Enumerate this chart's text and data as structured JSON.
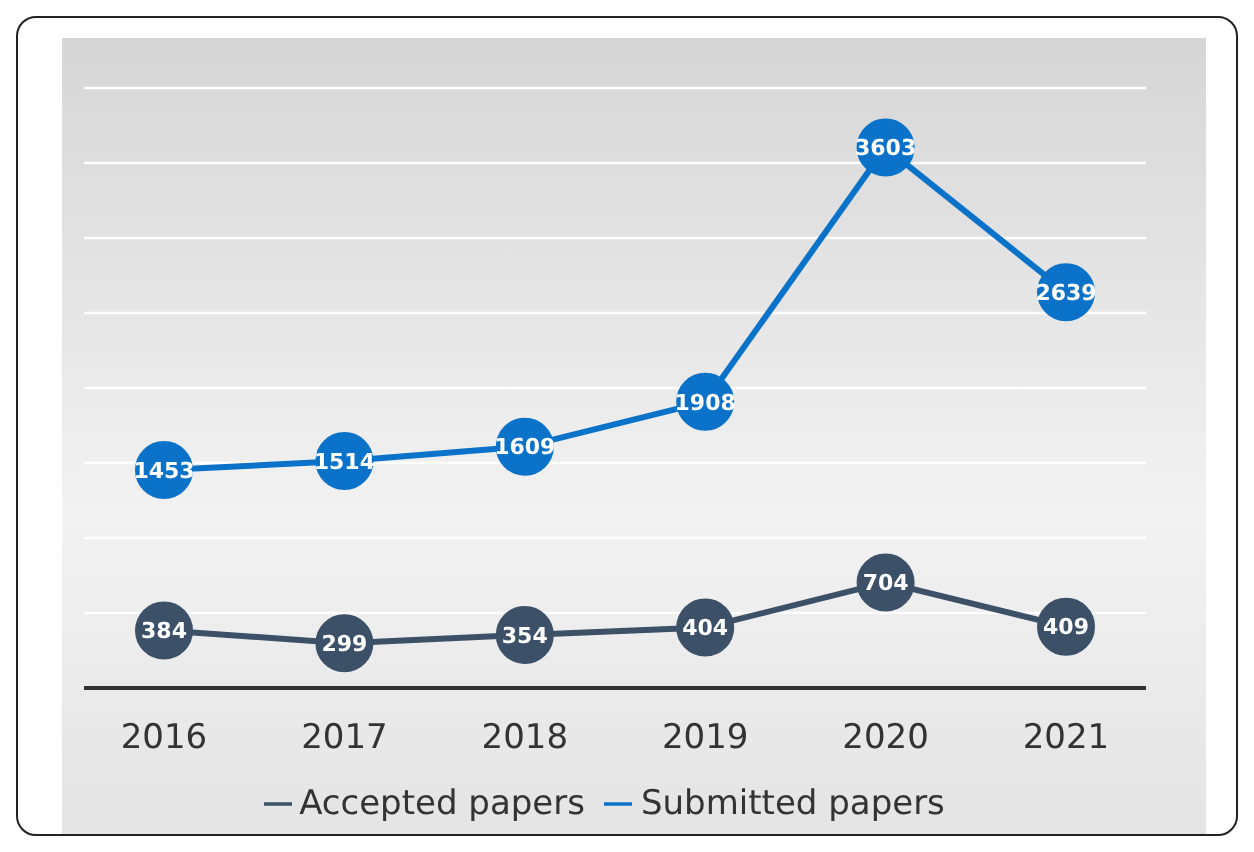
{
  "chart_data": {
    "type": "line",
    "categories": [
      "2016",
      "2017",
      "2018",
      "2019",
      "2020",
      "2021"
    ],
    "series": [
      {
        "name": "Accepted papers",
        "color": "#3c5068",
        "values": [
          384,
          299,
          354,
          404,
          704,
          409
        ]
      },
      {
        "name": "Submitted papers",
        "color": "#0b72c9",
        "values": [
          1453,
          1514,
          1609,
          1908,
          3603,
          2639
        ]
      }
    ],
    "tick_labels": "x",
    "grid": "y",
    "legend": "bottom",
    "marker": "circle",
    "line_style": "solid",
    "data_labels": true
  }
}
